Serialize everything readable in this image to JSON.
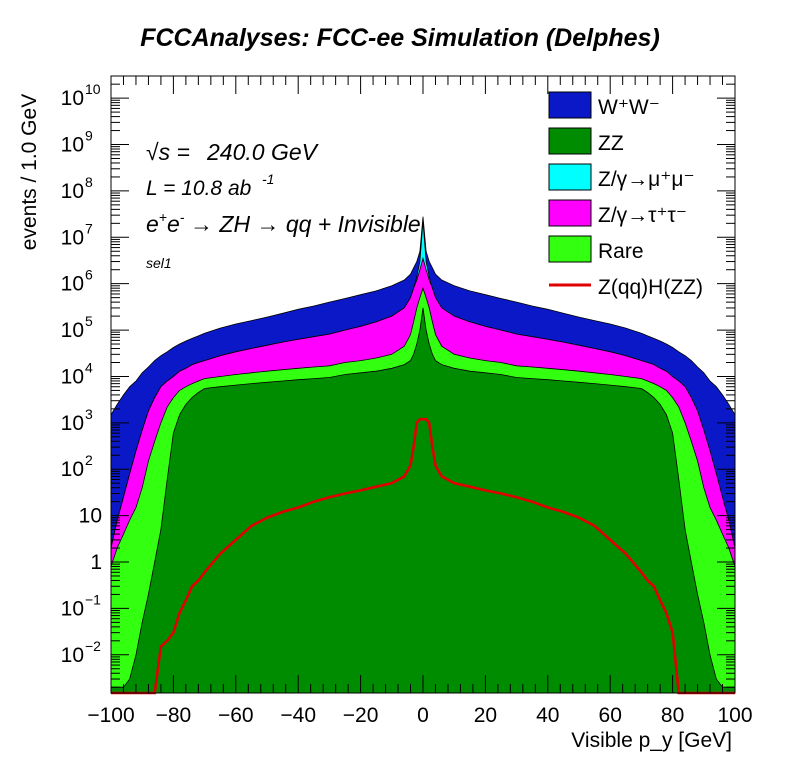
{
  "chart_data": {
    "type": "area",
    "title": "FCCAnalyses: FCC-ee Simulation (Delphes)",
    "xlabel": "Visible p_y [GeV]",
    "ylabel": "events / 1.0 GeV",
    "xlim": [
      -100,
      100
    ],
    "ylim": [
      0.0015,
      30000000000.0
    ],
    "log_y": true,
    "grid": false,
    "legend_position": "top-right",
    "annotations": {
      "sqrt_s": "240.0 GeV",
      "luminosity": "L = 10.8 ab",
      "lumi_exp": "-1",
      "process": "→ ZH → qq + Invisible",
      "selection": "sel1"
    },
    "x_ticks": [
      -100,
      -80,
      -60,
      -40,
      -20,
      0,
      20,
      40,
      60,
      80,
      100
    ],
    "y_ticks": [
      {
        "value": 10000000000.0,
        "base": "10",
        "exp": "10"
      },
      {
        "value": 1000000000.0,
        "base": "10",
        "exp": "9"
      },
      {
        "value": 100000000.0,
        "base": "10",
        "exp": "8"
      },
      {
        "value": 10000000.0,
        "base": "10",
        "exp": "7"
      },
      {
        "value": 1000000.0,
        "base": "10",
        "exp": "6"
      },
      {
        "value": 100000.0,
        "base": "10",
        "exp": "5"
      },
      {
        "value": 10000.0,
        "base": "10",
        "exp": "4"
      },
      {
        "value": 1000.0,
        "base": "10",
        "exp": "3"
      },
      {
        "value": 100.0,
        "base": "10",
        "exp": "2"
      },
      {
        "value": 10,
        "base": "10",
        "exp": ""
      },
      {
        "value": 1,
        "base": "1",
        "exp": ""
      },
      {
        "value": 0.1,
        "base": "10",
        "exp": "−1"
      },
      {
        "value": 0.01,
        "base": "10",
        "exp": "−2"
      }
    ],
    "legend": [
      {
        "label": "W⁺W⁻",
        "color": "#0a18c8",
        "kind": "fill"
      },
      {
        "label": "ZZ",
        "color": "#008c00",
        "kind": "fill"
      },
      {
        "label": "Z/γ→μ⁺μ⁻",
        "color": "#00ffff",
        "kind": "fill"
      },
      {
        "label": "Z/γ→τ⁺τ⁻",
        "color": "#ff00ff",
        "kind": "fill"
      },
      {
        "label": "Rare",
        "color": "#33ff11",
        "kind": "fill"
      },
      {
        "label": "Z(qq)H(ZZ)",
        "color": "#e00000",
        "kind": "line"
      }
    ],
    "x": [
      -100,
      -98,
      -96,
      -94,
      -92,
      -90,
      -88,
      -86,
      -84,
      -82,
      -80,
      -78,
      -76,
      -74,
      -72,
      -70,
      -65,
      -60,
      -55,
      -50,
      -45,
      -40,
      -35,
      -30,
      -25,
      -20,
      -15,
      -10,
      -6,
      -4,
      -3,
      -2,
      -1,
      0,
      1,
      2,
      3,
      4,
      6,
      10,
      15,
      20,
      25,
      30,
      35,
      40,
      45,
      50,
      55,
      60,
      65,
      70,
      72,
      74,
      76,
      78,
      80,
      82,
      84,
      86,
      88,
      90,
      92,
      94,
      96,
      98,
      100
    ],
    "series": [
      {
        "name": "ZZ",
        "color": "#008c00",
        "values": [
          0.002,
          0.002,
          0.002,
          0.003,
          0.01,
          0.05,
          0.2,
          1,
          5,
          60,
          600,
          1500,
          2500,
          3500,
          4500,
          5500,
          6000,
          6500,
          7000,
          7500,
          8000,
          8500,
          9000,
          9500,
          11000,
          12000,
          13000,
          15000,
          18000,
          22000,
          30000,
          50000,
          100000,
          300000,
          100000,
          50000,
          30000,
          22000,
          18000,
          15000,
          13000,
          12000,
          11000,
          9500,
          9000,
          8500,
          8000,
          7500,
          7000,
          6500,
          6000,
          5500,
          4500,
          3500,
          2500,
          1500,
          600,
          60,
          5,
          1,
          0.2,
          0.05,
          0.01,
          0.003,
          0.002,
          0.002,
          0.002
        ]
      },
      {
        "name": "Rare",
        "color": "#33ff11",
        "values": [
          0.8,
          2,
          4,
          8,
          15,
          40,
          150,
          400,
          1000,
          2200,
          3500,
          5000,
          6000,
          7000,
          8000,
          9000,
          10000,
          11000,
          12000,
          13000,
          14000,
          15000,
          16000,
          17000,
          20000,
          22000,
          25000,
          30000,
          45000,
          80000,
          150000,
          300000,
          500000,
          800000,
          500000,
          300000,
          150000,
          80000,
          45000,
          30000,
          25000,
          22000,
          20000,
          17000,
          16000,
          15000,
          14000,
          13000,
          12000,
          11000,
          10000,
          9000,
          8000,
          7000,
          6000,
          5000,
          3500,
          2200,
          1000,
          400,
          150,
          40,
          15,
          8,
          4,
          2,
          0.8
        ]
      },
      {
        "name": "Z/γ→τ⁺τ⁻",
        "color": "#ff00ff",
        "values": [
          2,
          8,
          25,
          80,
          250,
          700,
          1800,
          3500,
          6000,
          8000,
          10000,
          13000,
          15000,
          18000,
          20000,
          22000,
          28000,
          34000,
          40000,
          47000,
          55000,
          63000,
          72000,
          82000,
          100000,
          120000,
          150000,
          200000,
          300000,
          500000,
          800000,
          1200000,
          2000000,
          3500000,
          2000000,
          1200000,
          800000,
          500000,
          300000,
          200000,
          150000,
          120000,
          100000,
          82000,
          72000,
          63000,
          55000,
          47000,
          40000,
          34000,
          28000,
          22000,
          20000,
          18000,
          15000,
          13000,
          10000,
          8000,
          6000,
          3500,
          1800,
          700,
          250,
          80,
          25,
          8,
          2
        ]
      },
      {
        "name": "Z/γ→μ⁺μ⁻",
        "color": "#00ffff",
        "values": [
          2,
          8,
          25,
          80,
          250,
          700,
          1800,
          3500,
          6000,
          8000,
          10000,
          13000,
          15000,
          18000,
          20000,
          22000,
          28000,
          34000,
          40000,
          47000,
          55000,
          63000,
          72000,
          82000,
          100000,
          120000,
          150000,
          200000,
          300000,
          500000,
          800000,
          1400000,
          3000000,
          22000000,
          3000000,
          1400000,
          800000,
          500000,
          300000,
          200000,
          150000,
          120000,
          100000,
          82000,
          72000,
          63000,
          55000,
          47000,
          40000,
          34000,
          28000,
          22000,
          20000,
          18000,
          15000,
          13000,
          10000,
          8000,
          6000,
          3500,
          1800,
          700,
          250,
          80,
          25,
          8,
          2
        ]
      },
      {
        "name": "W⁺W⁻",
        "color": "#0a18c8",
        "values": [
          1500,
          2500,
          4000,
          6000,
          8000,
          12000,
          16000,
          22000,
          28000,
          34000,
          42000,
          50000,
          58000,
          66000,
          75000,
          85000,
          110000,
          135000,
          160000,
          190000,
          230000,
          280000,
          330000,
          400000,
          480000,
          580000,
          700000,
          900000,
          1200000,
          1600000,
          2200000,
          3000000,
          5000000,
          28000000,
          5000000,
          3000000,
          2200000,
          1600000,
          1200000,
          900000,
          700000,
          580000,
          480000,
          400000,
          330000,
          280000,
          230000,
          190000,
          160000,
          135000,
          110000,
          85000,
          75000,
          66000,
          58000,
          50000,
          42000,
          34000,
          28000,
          22000,
          16000,
          12000,
          8000,
          6000,
          4000,
          2500,
          1500
        ]
      },
      {
        "name": "Z(qq)H(ZZ)",
        "color": "#e00000",
        "values": [
          0.0015,
          0.0015,
          0.0015,
          0.0015,
          0.0015,
          0.0015,
          0.0015,
          0.0015,
          0.015,
          0.02,
          0.03,
          0.08,
          0.15,
          0.3,
          0.4,
          0.6,
          1.5,
          3,
          6,
          9,
          12,
          15,
          20,
          25,
          30,
          35,
          42,
          50,
          70,
          120,
          300,
          1000,
          1200,
          1200,
          1200,
          1000,
          300,
          120,
          70,
          50,
          42,
          35,
          30,
          25,
          20,
          15,
          12,
          9,
          6,
          3,
          1.5,
          0.6,
          0.4,
          0.3,
          0.15,
          0.08,
          0.03,
          0.0015,
          0.0015,
          0.0015,
          0.0015,
          0.0015,
          0.0015,
          0.0015,
          0.0015,
          0.0015,
          0.0015
        ]
      }
    ]
  }
}
